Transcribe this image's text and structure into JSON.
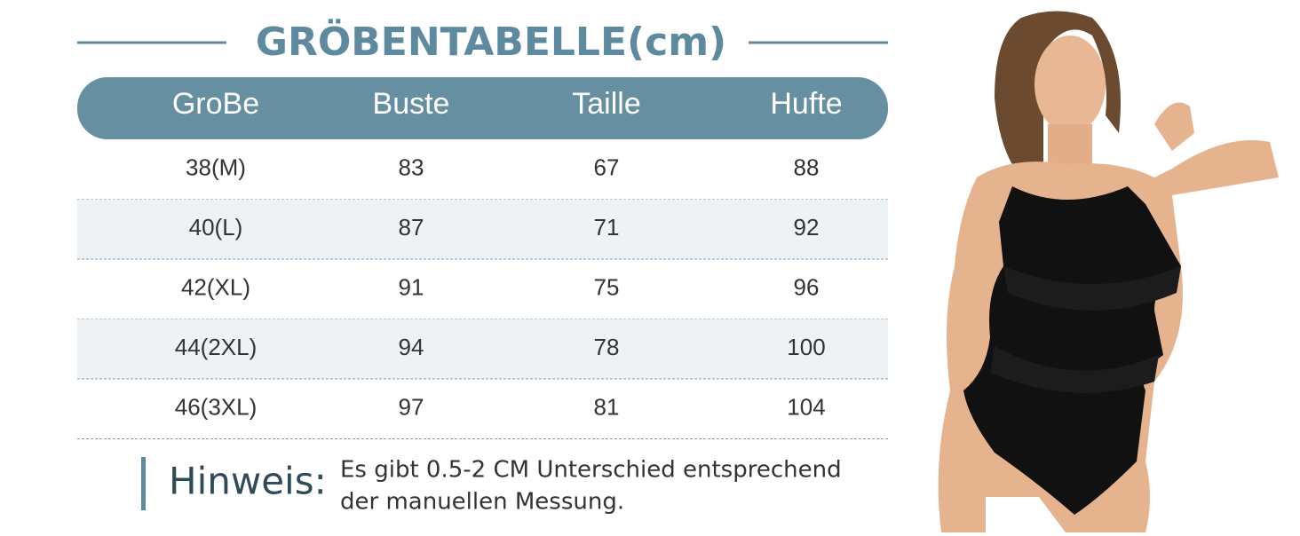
{
  "title": "GRÖBENTABELLE(cm)",
  "table": {
    "header": [
      "GroBe",
      "Buste",
      "Taille",
      "Hufte"
    ],
    "rows": [
      [
        "38(M)",
        83,
        67,
        88
      ],
      [
        "40(L)",
        87,
        71,
        92
      ],
      [
        "42(XL)",
        91,
        75,
        96
      ],
      [
        "44(2XL)",
        94,
        78,
        100
      ],
      [
        "46(3XL)",
        97,
        81,
        104
      ]
    ]
  },
  "note": {
    "label": "Hinweis:",
    "lines": [
      "Es gibt 0.5-2 CM Unterschied entsprechend",
      "der manuellen Messung."
    ]
  }
}
